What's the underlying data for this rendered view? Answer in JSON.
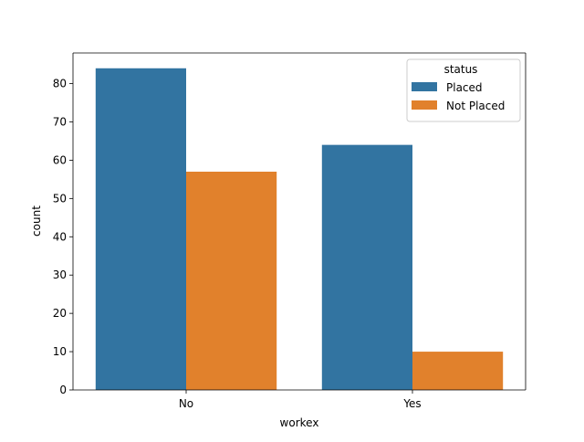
{
  "chart_data": {
    "type": "bar",
    "xlabel": "workex",
    "ylabel": "count",
    "categories": [
      "No",
      "Yes"
    ],
    "ylim": [
      0,
      88
    ],
    "yticks": [
      0,
      10,
      20,
      30,
      40,
      50,
      60,
      70,
      80
    ],
    "grid": false,
    "legend": {
      "title": "status",
      "placement": "top-right"
    },
    "series": [
      {
        "name": "Placed",
        "color": "#3274a1",
        "values": [
          84,
          64
        ]
      },
      {
        "name": "Not Placed",
        "color": "#e1812c",
        "values": [
          57,
          10
        ]
      }
    ]
  }
}
